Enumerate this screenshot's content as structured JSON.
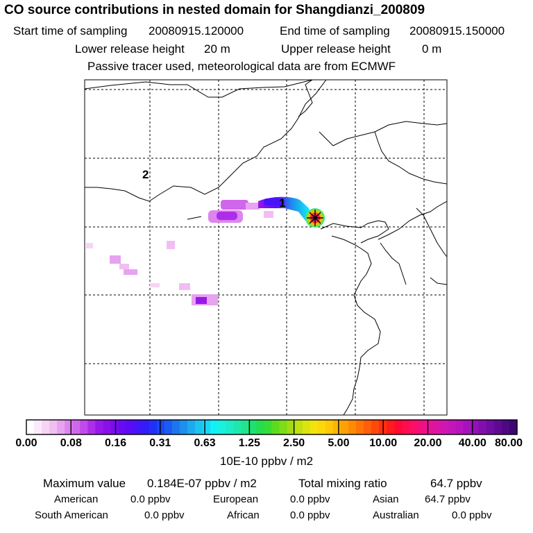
{
  "title": "CO  source contributions in nested domain for Shangdianzi_200809",
  "sampling": {
    "start_label": "Start time of sampling",
    "start_value": "20080915.120000",
    "end_label": "End time of sampling",
    "end_value": "20080915.150000"
  },
  "release": {
    "lower_label": "Lower release height",
    "lower_value": "20 m",
    "upper_label": "Upper release height",
    "upper_value": "0 m"
  },
  "tracer_note": "Passive tracer used, meteorological data are from ECMWF",
  "map": {
    "labels": [
      "2",
      "1"
    ]
  },
  "colorbar": {
    "ticks": [
      "0.00",
      "0.08",
      "0.16",
      "0.31",
      "0.63",
      "1.25",
      "2.50",
      "5.00",
      "10.00",
      "20.00",
      "40.00",
      "80.00"
    ],
    "unit": "10E-10 ppbv / m2",
    "colors": [
      "#ffffff",
      "#fbeafb",
      "#f6d4f6",
      "#f0bef3",
      "#e7a2f0",
      "#dd85ee",
      "#cf66ec",
      "#c04aea",
      "#ad2eea",
      "#9818ea",
      "#8a10ea",
      "#7a0cee",
      "#6a0af4",
      "#5a0cf8",
      "#4614fa",
      "#321cfa",
      "#1e30fa",
      "#1a46f6",
      "#1a5cf2",
      "#1c76ee",
      "#1c90ec",
      "#1eaaee",
      "#1cc4f0",
      "#1ad8f4",
      "#14f0f8",
      "#18f0e0",
      "#1eecc8",
      "#20e8ac",
      "#20e48e",
      "#1ee070",
      "#22de50",
      "#38dc36",
      "#5cdc20",
      "#7edc18",
      "#a0dc14",
      "#c0e010",
      "#dce410",
      "#f0e40c",
      "#fcd80a",
      "#ffc808",
      "#ffb406",
      "#ffa006",
      "#ff8a06",
      "#ff7408",
      "#ff5e0a",
      "#ff480c",
      "#ff300e",
      "#ff1a1c",
      "#ff0a34",
      "#ff0c50",
      "#fa0e68",
      "#f21080",
      "#e81294",
      "#dc14a4",
      "#d016b0",
      "#c416b8",
      "#b614bc",
      "#a612bc",
      "#9410b8",
      "#820eae",
      "#700ca2",
      "#5e0a94",
      "#4e0884",
      "#3e0672"
    ]
  },
  "stats": {
    "max_label": "Maximum value",
    "max_value": "0.184E-07 ppbv / m2",
    "total_label": "Total mixing ratio",
    "total_value": "64.7 ppbv",
    "regions": [
      {
        "name": "American",
        "value": "0.0 ppbv"
      },
      {
        "name": "European",
        "value": "0.0 ppbv"
      },
      {
        "name": "Asian",
        "value": "64.7 ppbv"
      },
      {
        "name": "South American",
        "value": "0.0 ppbv"
      },
      {
        "name": "African",
        "value": "0.0 ppbv"
      },
      {
        "name": "Australian",
        "value": "0.0 ppbv"
      }
    ]
  }
}
